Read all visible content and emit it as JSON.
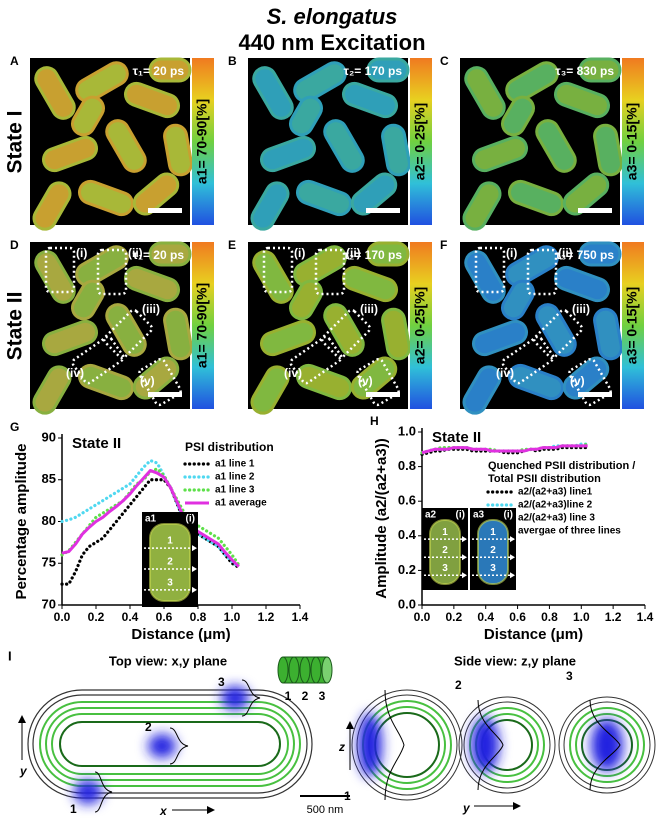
{
  "title": {
    "species": "S. elongatus",
    "subtitle": "440 nm Excitation"
  },
  "row_labels": [
    "State I",
    "State II"
  ],
  "images": [
    {
      "letter": "A",
      "tau": "τ₁= 20 ps",
      "scale": "a1= 70-90[%]"
    },
    {
      "letter": "B",
      "tau": "τ₂= 170 ps",
      "scale": "a2= 0-25[%]"
    },
    {
      "letter": "C",
      "tau": "τ₃= 830 ps",
      "scale": "a3= 0-15[%]"
    },
    {
      "letter": "D",
      "tau": "τ₁= 20 ps",
      "scale": "a1= 70-90[%]",
      "regions": [
        "(i)",
        "(ii)",
        "(iii)",
        "(iv)",
        "(v)"
      ]
    },
    {
      "letter": "E",
      "tau": "τ₂= 170 ps",
      "scale": "a2= 0-25[%]",
      "regions": [
        "(i)",
        "(ii)",
        "(iii)",
        "(iv)",
        "(v)"
      ]
    },
    {
      "letter": "F",
      "tau": "τ₃= 750 ps",
      "scale": "a3= 0-15[%]",
      "regions": [
        "(i)",
        "(ii)",
        "(iii)",
        "(iv)",
        "(v)"
      ]
    }
  ],
  "chart_data": [
    {
      "type": "line",
      "panel": "G",
      "annotation": "State II",
      "legend_title": "PSI distribution",
      "xlabel": "Distance (μm)",
      "ylabel": "Percentage amplitude",
      "x": [
        0,
        0.04,
        0.08,
        0.12,
        0.16,
        0.2,
        0.24,
        0.28,
        0.32,
        0.36,
        0.4,
        0.44,
        0.48,
        0.52,
        0.56,
        0.6,
        0.64,
        0.68,
        0.72,
        0.76,
        0.8,
        0.84,
        0.88,
        0.92,
        0.96,
        1.0,
        1.04
      ],
      "xlim": [
        0,
        1.4
      ],
      "xticks": [
        {
          "value": 0,
          "label": "0.0"
        },
        0.2,
        0.4,
        0.6,
        0.8,
        {
          "value": 1,
          "label": "1.0"
        },
        1.2,
        1.4
      ],
      "ylim": [
        70,
        90
      ],
      "yticks": [
        70,
        75,
        80,
        85,
        90
      ],
      "series": [
        {
          "name": "a1 line 1",
          "color": "#000000",
          "style": "dotted",
          "values": [
            72.5,
            72.5,
            74,
            76,
            77,
            77.5,
            78,
            79,
            80,
            81,
            82,
            83,
            84,
            85,
            85,
            85,
            84,
            82,
            80,
            79,
            78.5,
            78,
            77.5,
            77,
            76,
            75,
            74.5
          ]
        },
        {
          "name": "a1 line 2",
          "color": "#4fd8f0",
          "style": "dotted",
          "values": [
            80,
            80.2,
            80.5,
            81,
            81.5,
            82,
            82.5,
            83,
            83.5,
            84,
            84.5,
            85.5,
            86.5,
            87.3,
            87,
            85.5,
            84,
            82,
            80,
            79,
            78.5,
            78,
            77.5,
            77,
            76,
            75.2,
            74.5
          ]
        },
        {
          "name": "a1 line 3",
          "color": "#5ee04a",
          "style": "dotted",
          "values": [
            76,
            76.5,
            77.5,
            78.5,
            79.5,
            80.5,
            81,
            81.5,
            82,
            82.5,
            83.5,
            84.5,
            85,
            86,
            86.3,
            85.5,
            84,
            82.5,
            81,
            80,
            79.5,
            79,
            78.5,
            78,
            77,
            76,
            74.8
          ]
        },
        {
          "name": "a1 average",
          "color": "#e030e0",
          "style": "solid",
          "values": [
            76.2,
            76.4,
            77.3,
            78.5,
            79.3,
            80,
            80.5,
            81.2,
            81.8,
            82.5,
            83.3,
            84.3,
            85.2,
            86.1,
            85.8,
            85.3,
            84,
            82.2,
            80.3,
            79.3,
            78.8,
            78.3,
            77.8,
            77.3,
            76.3,
            75.4,
            74.6
          ]
        }
      ],
      "inset": {
        "images": [
          {
            "label": "a1",
            "region": "(i)",
            "color": "#90b040"
          }
        ],
        "lines": [
          "1",
          "2",
          "3"
        ]
      }
    },
    {
      "type": "line",
      "panel": "H",
      "annotation": "State II",
      "legend_title": [
        "Quenched PSII distribution /",
        "Total PSII distribution"
      ],
      "xlabel": "Distance (μm)",
      "ylabel": "Amplitude (a2/(a2+a3))",
      "x": [
        0,
        0.04,
        0.08,
        0.12,
        0.16,
        0.2,
        0.24,
        0.28,
        0.32,
        0.36,
        0.4,
        0.44,
        0.48,
        0.52,
        0.56,
        0.6,
        0.64,
        0.68,
        0.72,
        0.76,
        0.8,
        0.84,
        0.88,
        0.92,
        0.96,
        1.0,
        1.04
      ],
      "xlim": [
        0,
        1.4
      ],
      "xticks": [
        {
          "value": 0,
          "label": "0.0"
        },
        0.2,
        0.4,
        0.6,
        0.8,
        {
          "value": 1,
          "label": "1.0"
        },
        1.2,
        1.4
      ],
      "ylim": [
        0,
        1
      ],
      "yticks": [
        {
          "value": 0,
          "label": "0.0"
        },
        0.2,
        0.4,
        0.6,
        0.8,
        {
          "value": 1,
          "label": "1.0"
        }
      ],
      "series": [
        {
          "name": "a2/(a2+a3) line1",
          "color": "#000000",
          "style": "dotted",
          "values": [
            0.87,
            0.88,
            0.89,
            0.89,
            0.9,
            0.9,
            0.9,
            0.9,
            0.89,
            0.89,
            0.89,
            0.89,
            0.89,
            0.88,
            0.88,
            0.88,
            0.89,
            0.9,
            0.89,
            0.9,
            0.9,
            0.9,
            0.91,
            0.91,
            0.91,
            0.91,
            0.91
          ]
        },
        {
          "name": "a2/(a2+a3)line 2",
          "color": "#4fd8f0",
          "style": "dotted",
          "values": [
            0.88,
            0.89,
            0.9,
            0.9,
            0.9,
            0.91,
            0.91,
            0.91,
            0.9,
            0.9,
            0.9,
            0.89,
            0.89,
            0.89,
            0.89,
            0.89,
            0.89,
            0.9,
            0.9,
            0.91,
            0.91,
            0.92,
            0.92,
            0.92,
            0.92,
            0.93,
            0.93
          ]
        },
        {
          "name": "a2/(a2+a3) line 3",
          "color": "#5ee04a",
          "style": "dotted",
          "values": [
            0.88,
            0.89,
            0.9,
            0.91,
            0.91,
            0.91,
            0.91,
            0.91,
            0.9,
            0.9,
            0.9,
            0.9,
            0.89,
            0.89,
            0.89,
            0.89,
            0.9,
            0.9,
            0.9,
            0.91,
            0.91,
            0.91,
            0.92,
            0.92,
            0.92,
            0.92,
            0.93
          ]
        },
        {
          "name": "avergae of three lines",
          "color": "#e030e0",
          "style": "solid",
          "values": [
            0.88,
            0.89,
            0.9,
            0.9,
            0.9,
            0.91,
            0.91,
            0.91,
            0.9,
            0.9,
            0.9,
            0.89,
            0.89,
            0.89,
            0.89,
            0.89,
            0.89,
            0.9,
            0.9,
            0.91,
            0.91,
            0.91,
            0.92,
            0.92,
            0.92,
            0.92,
            0.92
          ]
        }
      ],
      "inset": {
        "images": [
          {
            "label": "a2",
            "region": "(i)",
            "color": "#80a040"
          },
          {
            "label": "a3",
            "region": "(i)",
            "color": "#2a78b8"
          }
        ],
        "lines": [
          "1",
          "2",
          "3"
        ]
      }
    }
  ],
  "diagram": {
    "letter": "I",
    "top_title": "Top view: x,y plane",
    "side_title": "Side view: z,y plane",
    "cylinder_labels": [
      "1",
      "2",
      "3"
    ],
    "top_labels": [
      "1",
      "2",
      "3"
    ],
    "side_labels": [
      "1",
      "2",
      "3"
    ],
    "axes": [
      "y",
      "x",
      "z",
      "y"
    ],
    "scale": "500 nm"
  }
}
